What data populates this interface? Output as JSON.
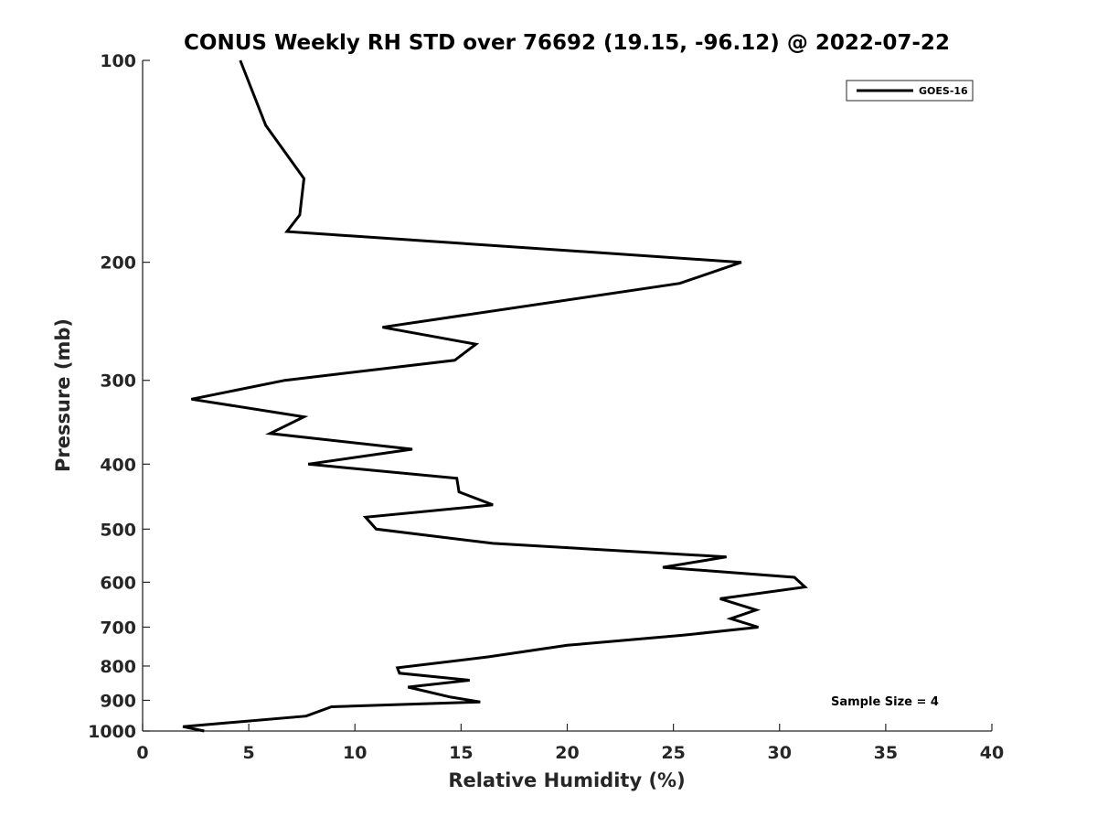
{
  "chart_data": {
    "type": "line",
    "title": "CONUS Weekly RH STD over 76692 (19.15, -96.12) @ 2022-07-22",
    "xlabel": "Relative Humidity (%)",
    "ylabel": "Pressure (mb)",
    "xlim": [
      0,
      40
    ],
    "ylim": [
      100,
      1000
    ],
    "y_scale": "log",
    "y_reversed": true,
    "x_ticks": [
      0,
      5,
      10,
      15,
      20,
      25,
      30,
      35,
      40
    ],
    "y_ticks": [
      100,
      200,
      300,
      400,
      500,
      600,
      700,
      800,
      900,
      1000
    ],
    "grid": false,
    "legend_position": "top-right",
    "series": [
      {
        "name": "GOES-16",
        "color": "#000000",
        "points": [
          [
            4.6,
            100
          ],
          [
            5.8,
            125
          ],
          [
            7.6,
            150
          ],
          [
            7.4,
            170
          ],
          [
            6.8,
            180
          ],
          [
            28.2,
            200
          ],
          [
            25.3,
            215
          ],
          [
            11.3,
            250
          ],
          [
            15.7,
            265
          ],
          [
            14.7,
            280
          ],
          [
            6.7,
            300
          ],
          [
            2.3,
            320
          ],
          [
            7.6,
            340
          ],
          [
            6.0,
            360
          ],
          [
            12.7,
            380
          ],
          [
            7.8,
            400
          ],
          [
            14.8,
            420
          ],
          [
            14.9,
            440
          ],
          [
            16.5,
            460
          ],
          [
            10.5,
            480
          ],
          [
            11.0,
            500
          ],
          [
            16.5,
            525
          ],
          [
            27.5,
            550
          ],
          [
            24.5,
            570
          ],
          [
            30.7,
            590
          ],
          [
            31.2,
            610
          ],
          [
            27.2,
            635
          ],
          [
            28.9,
            660
          ],
          [
            27.7,
            680
          ],
          [
            29.0,
            700
          ],
          [
            25.4,
            720
          ],
          [
            20.0,
            745
          ],
          [
            16.3,
            775
          ],
          [
            12.0,
            805
          ],
          [
            12.1,
            820
          ],
          [
            15.4,
            840
          ],
          [
            12.5,
            860
          ],
          [
            14.5,
            890
          ],
          [
            15.9,
            905
          ],
          [
            8.9,
            920
          ],
          [
            7.7,
            950
          ],
          [
            1.9,
            985
          ],
          [
            2.9,
            1000
          ]
        ]
      }
    ],
    "annotations": [
      "Sample Size = 4"
    ]
  }
}
